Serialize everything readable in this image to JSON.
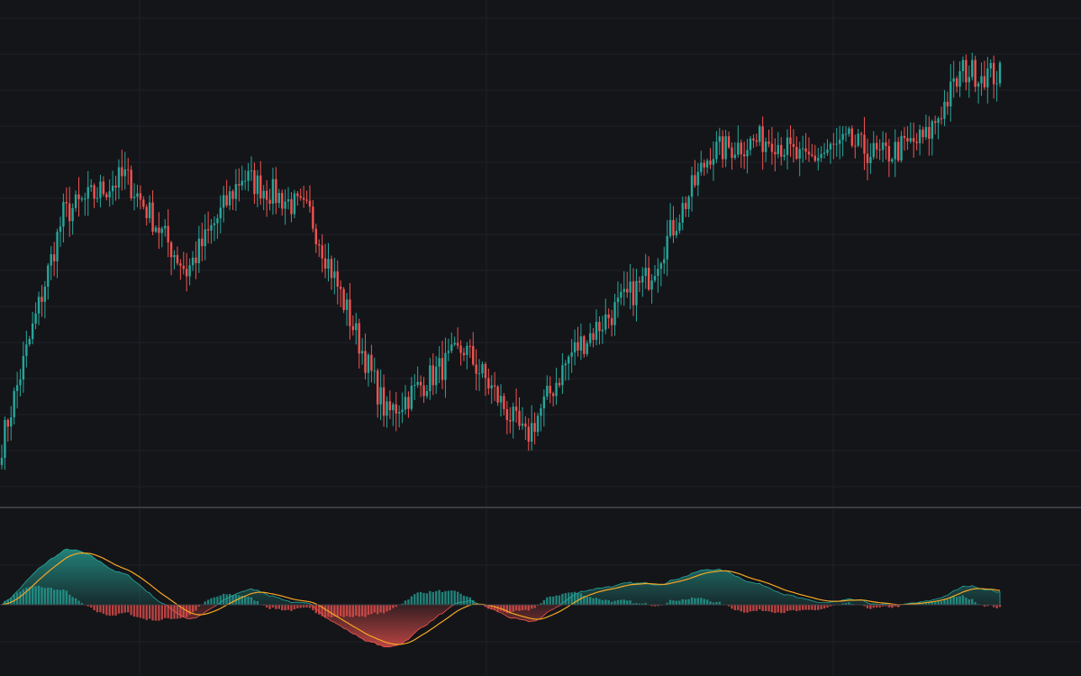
{
  "chart_data": [
    {
      "type": "candlestick",
      "title": "",
      "xlabel": "",
      "ylabel": "",
      "grid": true,
      "legend": "none",
      "ylim": [
        0,
        100
      ],
      "colors": {
        "up": "#26a69a",
        "down": "#ef5350"
      },
      "key_points": [
        {
          "index": 0,
          "close": 10
        },
        {
          "index": 20,
          "close": 58
        },
        {
          "index": 40,
          "close": 66
        },
        {
          "index": 60,
          "close": 46
        },
        {
          "index": 78,
          "close": 66
        },
        {
          "index": 100,
          "close": 58
        },
        {
          "index": 125,
          "close": 16
        },
        {
          "index": 150,
          "close": 30
        },
        {
          "index": 170,
          "close": 11
        },
        {
          "index": 185,
          "close": 29
        },
        {
          "index": 210,
          "close": 45
        },
        {
          "index": 230,
          "close": 71
        },
        {
          "index": 250,
          "close": 74
        },
        {
          "index": 260,
          "close": 69
        },
        {
          "index": 275,
          "close": 73
        },
        {
          "index": 285,
          "close": 70
        },
        {
          "index": 300,
          "close": 74
        },
        {
          "index": 312,
          "close": 88
        },
        {
          "index": 324,
          "close": 87
        }
      ]
    },
    {
      "type": "macd",
      "title": "",
      "xlabel": "",
      "ylabel": "",
      "grid": true,
      "legend": "none",
      "ylim": [
        -1.3,
        1.3
      ],
      "series": [
        {
          "role": "histogram",
          "color_positive": "#26a69a",
          "color_negative": "#ef5350"
        },
        {
          "role": "signal",
          "color": "#f5a623"
        }
      ]
    }
  ]
}
